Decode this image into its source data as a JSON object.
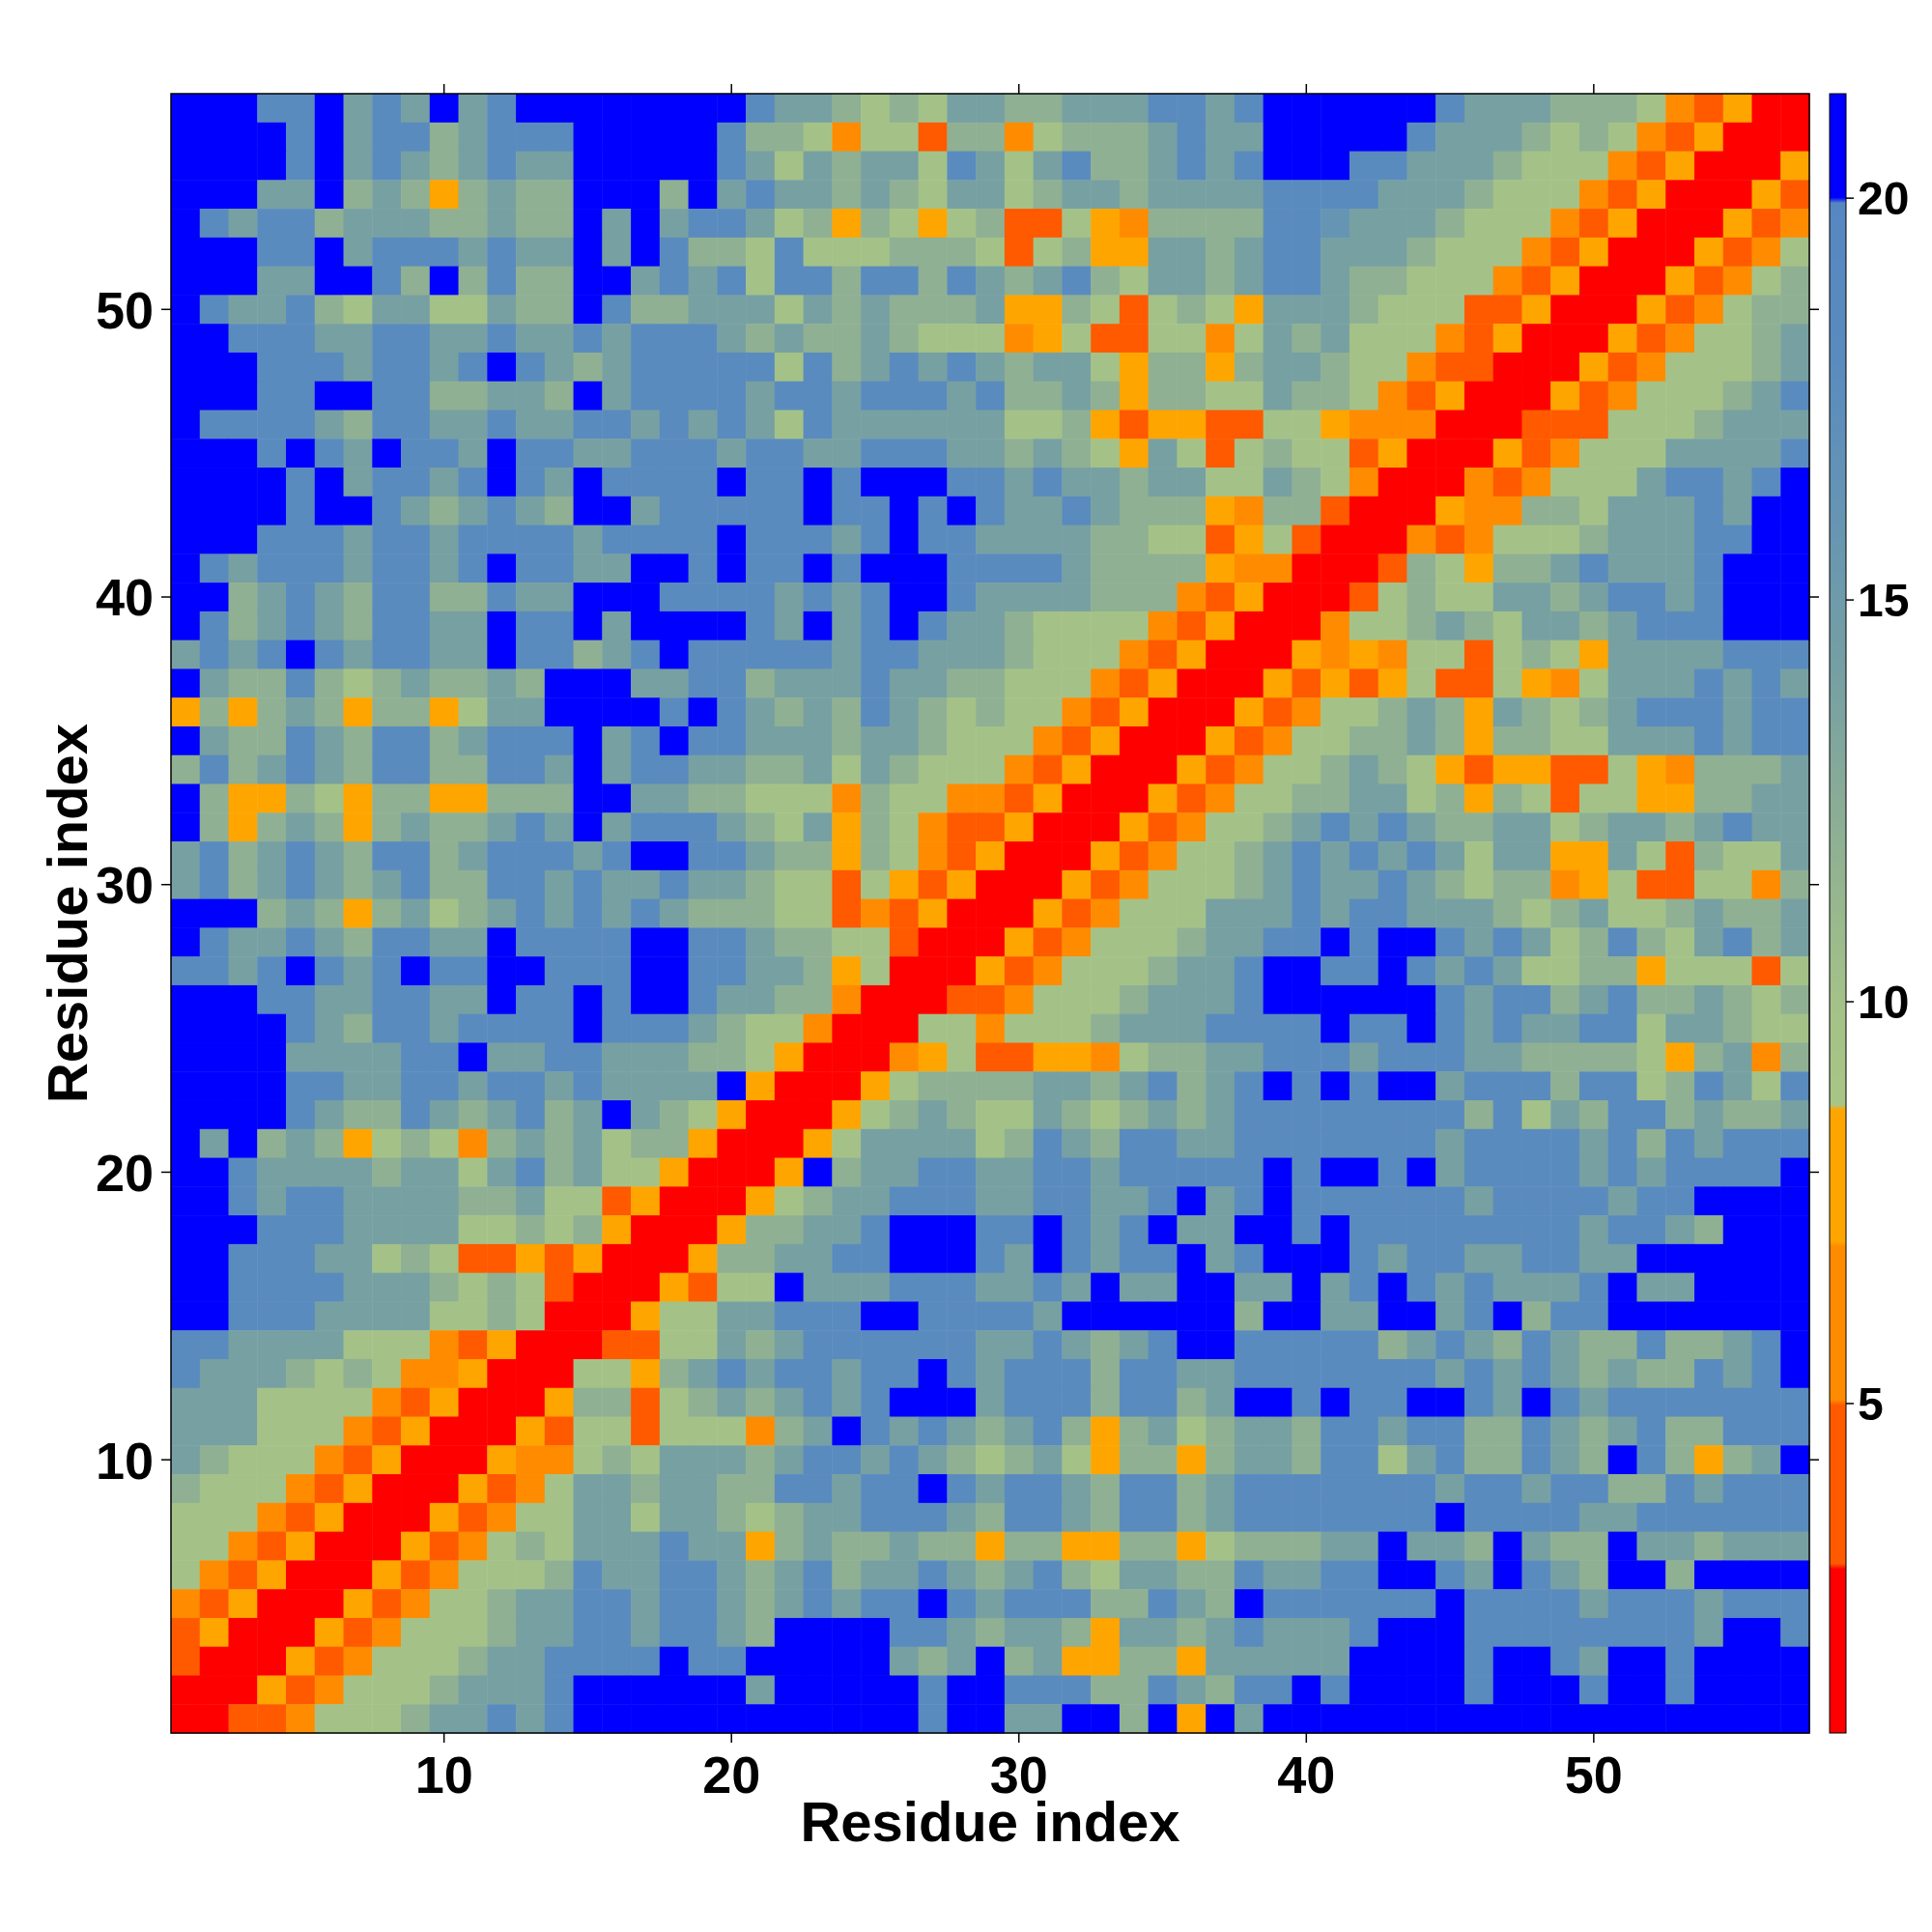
{
  "chart_data": {
    "type": "heatmap",
    "xlabel": "Residue index",
    "ylabel": "Residue index",
    "xlim": [
      0.5,
      57.5
    ],
    "ylim": [
      0.5,
      57.5
    ],
    "xticks": [
      10,
      20,
      30,
      40,
      50
    ],
    "yticks": [
      10,
      20,
      30,
      40,
      50
    ],
    "clim": [
      0.9,
      21.3
    ],
    "cticks": [
      5,
      10,
      15,
      20
    ],
    "cells": [
      [
        21,
        21,
        21,
        18,
        18,
        21,
        14,
        18,
        14,
        21,
        14,
        18,
        21,
        21,
        21,
        21,
        21,
        21,
        21,
        21,
        18,
        14,
        14,
        12,
        10,
        12,
        10,
        14,
        14,
        12,
        12,
        14,
        14,
        14,
        18,
        18,
        14,
        18,
        21,
        21,
        21,
        21,
        21,
        21,
        18,
        14,
        14,
        14,
        12,
        12,
        12,
        10,
        6,
        4,
        8,
        2,
        2
      ],
      [
        21,
        21,
        21,
        21,
        18,
        21,
        14,
        18,
        18,
        12,
        14,
        18,
        18,
        18,
        21,
        21,
        21,
        21,
        21,
        18,
        12,
        12,
        10,
        6,
        10,
        10,
        4,
        12,
        12,
        6,
        10,
        12,
        12,
        12,
        14,
        18,
        14,
        14,
        21,
        21,
        21,
        21,
        21,
        18,
        14,
        14,
        14,
        12,
        10,
        12,
        10,
        6,
        4,
        8,
        2,
        2,
        2
      ],
      [
        21,
        21,
        21,
        21,
        18,
        21,
        14,
        18,
        14,
        12,
        14,
        18,
        14,
        14,
        21,
        21,
        21,
        21,
        21,
        18,
        14,
        10,
        14,
        12,
        14,
        14,
        10,
        18,
        14,
        10,
        14,
        18,
        12,
        12,
        14,
        18,
        14,
        18,
        21,
        21,
        21,
        18,
        18,
        14,
        14,
        14,
        12,
        10,
        10,
        10,
        6,
        4,
        8,
        2,
        2,
        2,
        8
      ],
      [
        21,
        21,
        21,
        14,
        14,
        21,
        12,
        14,
        12,
        8,
        12,
        14,
        12,
        12,
        21,
        21,
        21,
        12,
        21,
        14,
        18,
        14,
        14,
        12,
        14,
        12,
        10,
        14,
        14,
        10,
        12,
        14,
        14,
        12,
        14,
        14,
        14,
        14,
        18,
        18,
        18,
        18,
        14,
        14,
        14,
        12,
        10,
        10,
        10,
        6,
        4,
        8,
        2,
        2,
        2,
        8,
        4
      ],
      [
        21,
        18,
        14,
        18,
        18,
        12,
        14,
        14,
        14,
        12,
        12,
        14,
        12,
        12,
        21,
        14,
        21,
        14,
        18,
        18,
        14,
        10,
        12,
        8,
        12,
        10,
        8,
        10,
        12,
        4,
        4,
        10,
        8,
        6,
        12,
        12,
        12,
        12,
        18,
        18,
        16,
        14,
        14,
        14,
        12,
        10,
        10,
        10,
        6,
        4,
        8,
        2,
        2,
        2,
        8,
        4,
        6
      ],
      [
        21,
        21,
        21,
        18,
        18,
        21,
        14,
        18,
        18,
        18,
        14,
        18,
        14,
        14,
        21,
        14,
        21,
        18,
        12,
        12,
        10,
        18,
        10,
        10,
        10,
        12,
        12,
        12,
        10,
        4,
        10,
        12,
        8,
        8,
        14,
        14,
        12,
        14,
        18,
        18,
        14,
        14,
        14,
        12,
        10,
        10,
        10,
        6,
        4,
        8,
        2,
        2,
        2,
        8,
        4,
        6,
        10
      ],
      [
        21,
        21,
        21,
        14,
        14,
        21,
        21,
        18,
        12,
        21,
        12,
        18,
        12,
        12,
        21,
        21,
        14,
        18,
        14,
        18,
        10,
        18,
        18,
        12,
        18,
        18,
        12,
        18,
        14,
        12,
        14,
        18,
        12,
        10,
        14,
        14,
        12,
        14,
        18,
        18,
        14,
        12,
        12,
        10,
        10,
        10,
        6,
        4,
        8,
        2,
        2,
        2,
        8,
        4,
        6,
        10,
        12
      ],
      [
        21,
        18,
        14,
        14,
        18,
        12,
        10,
        14,
        14,
        10,
        10,
        14,
        12,
        12,
        21,
        18,
        12,
        12,
        14,
        14,
        14,
        10,
        14,
        12,
        14,
        12,
        12,
        12,
        14,
        8,
        8,
        12,
        10,
        4,
        10,
        12,
        10,
        8,
        14,
        14,
        14,
        12,
        10,
        10,
        10,
        4,
        4,
        8,
        2,
        2,
        2,
        8,
        4,
        6,
        10,
        12,
        12
      ],
      [
        21,
        21,
        18,
        18,
        18,
        14,
        14,
        18,
        18,
        14,
        14,
        18,
        14,
        14,
        18,
        14,
        18,
        18,
        18,
        14,
        12,
        14,
        12,
        12,
        14,
        12,
        10,
        10,
        10,
        6,
        8,
        10,
        4,
        4,
        10,
        10,
        6,
        10,
        14,
        12,
        14,
        10,
        10,
        10,
        6,
        4,
        8,
        2,
        2,
        2,
        8,
        4,
        6,
        10,
        10,
        12,
        14
      ],
      [
        21,
        21,
        21,
        18,
        18,
        18,
        14,
        18,
        18,
        14,
        18,
        21,
        18,
        14,
        12,
        14,
        18,
        18,
        18,
        18,
        18,
        10,
        18,
        12,
        14,
        18,
        14,
        18,
        14,
        12,
        14,
        14,
        10,
        8,
        12,
        12,
        8,
        12,
        14,
        14,
        12,
        10,
        10,
        6,
        4,
        4,
        2,
        2,
        2,
        8,
        4,
        6,
        10,
        10,
        10,
        12,
        14
      ],
      [
        21,
        21,
        21,
        18,
        18,
        21,
        21,
        18,
        18,
        12,
        12,
        14,
        14,
        12,
        21,
        14,
        18,
        18,
        18,
        18,
        14,
        18,
        18,
        14,
        18,
        18,
        18,
        14,
        18,
        12,
        12,
        14,
        12,
        8,
        12,
        12,
        10,
        10,
        14,
        12,
        12,
        10,
        6,
        4,
        8,
        2,
        2,
        2,
        8,
        4,
        6,
        10,
        10,
        10,
        12,
        14,
        18
      ],
      [
        21,
        18,
        18,
        18,
        18,
        14,
        12,
        18,
        18,
        14,
        14,
        18,
        14,
        14,
        18,
        18,
        14,
        18,
        14,
        18,
        14,
        10,
        18,
        14,
        14,
        14,
        14,
        14,
        14,
        10,
        10,
        12,
        8,
        4,
        8,
        8,
        4,
        4,
        10,
        10,
        8,
        6,
        6,
        6,
        2,
        2,
        2,
        4,
        4,
        4,
        10,
        10,
        10,
        12,
        14,
        14,
        14
      ],
      [
        21,
        21,
        21,
        18,
        21,
        18,
        14,
        21,
        18,
        18,
        14,
        21,
        18,
        18,
        14,
        14,
        18,
        18,
        18,
        14,
        18,
        18,
        14,
        14,
        18,
        18,
        18,
        14,
        14,
        12,
        14,
        12,
        10,
        8,
        14,
        10,
        4,
        10,
        12,
        10,
        10,
        4,
        8,
        2,
        2,
        2,
        8,
        4,
        6,
        10,
        10,
        10,
        14,
        14,
        14,
        14,
        18
      ],
      [
        21,
        21,
        21,
        21,
        18,
        21,
        14,
        18,
        18,
        14,
        18,
        21,
        18,
        14,
        21,
        18,
        18,
        18,
        18,
        21,
        18,
        18,
        21,
        18,
        21,
        21,
        21,
        18,
        18,
        14,
        18,
        14,
        14,
        12,
        14,
        14,
        10,
        10,
        14,
        12,
        10,
        6,
        2,
        2,
        2,
        6,
        4,
        6,
        10,
        10,
        10,
        14,
        18,
        18,
        14,
        18,
        21
      ],
      [
        21,
        21,
        21,
        21,
        18,
        21,
        21,
        18,
        14,
        12,
        14,
        18,
        14,
        12,
        21,
        21,
        14,
        18,
        18,
        18,
        18,
        18,
        21,
        18,
        18,
        21,
        18,
        21,
        18,
        14,
        14,
        18,
        14,
        12,
        12,
        12,
        8,
        6,
        12,
        12,
        4,
        2,
        2,
        2,
        8,
        6,
        6,
        12,
        12,
        10,
        14,
        14,
        14,
        18,
        14,
        21,
        21
      ],
      [
        21,
        21,
        21,
        18,
        18,
        18,
        14,
        18,
        18,
        14,
        18,
        18,
        18,
        18,
        14,
        18,
        18,
        18,
        18,
        21,
        18,
        18,
        18,
        14,
        18,
        21,
        18,
        18,
        14,
        14,
        14,
        14,
        12,
        12,
        10,
        10,
        4,
        8,
        10,
        4,
        2,
        2,
        2,
        6,
        4,
        6,
        10,
        10,
        10,
        12,
        14,
        14,
        14,
        18,
        18,
        21,
        21
      ],
      [
        21,
        18,
        14,
        18,
        18,
        18,
        14,
        18,
        18,
        14,
        18,
        21,
        18,
        18,
        14,
        14,
        21,
        21,
        18,
        21,
        18,
        18,
        21,
        18,
        21,
        21,
        21,
        18,
        18,
        18,
        18,
        14,
        12,
        12,
        12,
        12,
        8,
        6,
        6,
        2,
        2,
        2,
        4,
        12,
        10,
        8,
        12,
        12,
        14,
        18,
        14,
        14,
        14,
        18,
        21,
        21,
        21
      ],
      [
        21,
        21,
        12,
        14,
        18,
        14,
        12,
        18,
        18,
        12,
        12,
        18,
        14,
        14,
        21,
        21,
        21,
        18,
        18,
        18,
        18,
        14,
        18,
        14,
        18,
        21,
        21,
        18,
        14,
        14,
        14,
        14,
        12,
        12,
        12,
        6,
        4,
        8,
        2,
        2,
        2,
        4,
        10,
        12,
        10,
        10,
        14,
        14,
        12,
        14,
        18,
        18,
        14,
        18,
        21,
        21,
        21
      ],
      [
        21,
        18,
        12,
        14,
        18,
        14,
        12,
        18,
        18,
        14,
        14,
        21,
        18,
        18,
        21,
        14,
        21,
        21,
        21,
        21,
        18,
        14,
        21,
        14,
        18,
        21,
        18,
        14,
        14,
        12,
        10,
        10,
        10,
        10,
        6,
        4,
        8,
        2,
        2,
        2,
        6,
        10,
        10,
        12,
        14,
        12,
        10,
        14,
        14,
        12,
        14,
        18,
        18,
        18,
        21,
        21,
        21
      ],
      [
        14,
        18,
        14,
        18,
        21,
        18,
        14,
        18,
        18,
        14,
        14,
        21,
        18,
        18,
        12,
        14,
        18,
        21,
        18,
        18,
        18,
        18,
        18,
        14,
        18,
        18,
        14,
        14,
        14,
        12,
        10,
        10,
        10,
        6,
        4,
        8,
        2,
        2,
        2,
        8,
        6,
        8,
        6,
        10,
        10,
        4,
        10,
        12,
        10,
        8,
        14,
        14,
        14,
        14,
        18,
        18,
        18
      ],
      [
        21,
        14,
        12,
        12,
        18,
        12,
        10,
        12,
        14,
        12,
        12,
        14,
        12,
        21,
        21,
        21,
        14,
        14,
        18,
        18,
        12,
        14,
        14,
        14,
        18,
        14,
        14,
        12,
        12,
        10,
        10,
        10,
        6,
        4,
        8,
        2,
        2,
        2,
        8,
        4,
        8,
        4,
        8,
        10,
        4,
        4,
        10,
        8,
        6,
        10,
        14,
        14,
        14,
        18,
        14,
        18,
        14
      ],
      [
        8,
        12,
        8,
        12,
        14,
        12,
        8,
        12,
        12,
        8,
        10,
        14,
        14,
        21,
        21,
        21,
        21,
        18,
        21,
        18,
        14,
        12,
        14,
        12,
        18,
        14,
        12,
        10,
        12,
        10,
        10,
        6,
        4,
        8,
        2,
        2,
        2,
        8,
        4,
        6,
        10,
        10,
        12,
        14,
        12,
        8,
        14,
        12,
        10,
        12,
        14,
        18,
        18,
        18,
        14,
        18,
        18
      ],
      [
        21,
        14,
        12,
        12,
        18,
        14,
        12,
        18,
        18,
        12,
        14,
        18,
        18,
        18,
        21,
        14,
        18,
        21,
        18,
        18,
        14,
        14,
        14,
        12,
        14,
        14,
        12,
        10,
        10,
        10,
        6,
        4,
        8,
        2,
        2,
        2,
        8,
        4,
        6,
        10,
        10,
        12,
        12,
        14,
        12,
        8,
        12,
        12,
        10,
        10,
        14,
        14,
        14,
        18,
        14,
        18,
        18
      ],
      [
        12,
        18,
        12,
        14,
        18,
        14,
        12,
        18,
        18,
        12,
        12,
        18,
        18,
        14,
        21,
        14,
        18,
        18,
        14,
        14,
        12,
        12,
        14,
        10,
        14,
        12,
        10,
        10,
        10,
        6,
        4,
        8,
        2,
        2,
        2,
        8,
        4,
        6,
        10,
        10,
        12,
        14,
        12,
        10,
        8,
        4,
        8,
        8,
        4,
        4,
        10,
        8,
        6,
        12,
        12,
        12,
        14
      ],
      [
        21,
        12,
        8,
        8,
        12,
        10,
        8,
        12,
        12,
        8,
        8,
        12,
        12,
        12,
        21,
        21,
        14,
        14,
        12,
        12,
        10,
        10,
        10,
        6,
        12,
        10,
        10,
        6,
        6,
        4,
        8,
        2,
        2,
        2,
        8,
        4,
        6,
        10,
        10,
        12,
        12,
        14,
        14,
        10,
        12,
        8,
        12,
        10,
        4,
        10,
        10,
        8,
        8,
        12,
        12,
        14,
        14
      ],
      [
        21,
        12,
        8,
        12,
        14,
        12,
        8,
        12,
        14,
        12,
        12,
        14,
        18,
        14,
        21,
        14,
        18,
        18,
        18,
        14,
        12,
        10,
        14,
        8,
        12,
        10,
        6,
        4,
        4,
        8,
        2,
        2,
        2,
        8,
        4,
        6,
        10,
        10,
        12,
        14,
        18,
        14,
        18,
        14,
        12,
        12,
        14,
        14,
        10,
        12,
        14,
        14,
        12,
        14,
        18,
        14,
        14
      ],
      [
        14,
        18,
        12,
        14,
        18,
        14,
        12,
        18,
        18,
        12,
        14,
        18,
        18,
        18,
        14,
        18,
        21,
        21,
        18,
        18,
        14,
        12,
        12,
        8,
        12,
        10,
        6,
        4,
        8,
        2,
        2,
        2,
        8,
        4,
        6,
        10,
        10,
        12,
        14,
        18,
        14,
        18,
        14,
        18,
        14,
        10,
        14,
        14,
        8,
        8,
        14,
        10,
        4,
        12,
        10,
        10,
        14
      ],
      [
        14,
        18,
        12,
        14,
        18,
        14,
        12,
        14,
        18,
        12,
        12,
        18,
        18,
        14,
        18,
        14,
        14,
        18,
        14,
        14,
        12,
        10,
        10,
        4,
        10,
        8,
        4,
        8,
        2,
        2,
        2,
        8,
        4,
        6,
        10,
        10,
        10,
        12,
        14,
        18,
        14,
        14,
        18,
        14,
        12,
        10,
        12,
        12,
        6,
        8,
        10,
        4,
        4,
        10,
        10,
        6,
        12
      ],
      [
        21,
        21,
        21,
        12,
        14,
        12,
        8,
        12,
        14,
        10,
        12,
        14,
        18,
        14,
        18,
        14,
        18,
        14,
        12,
        12,
        12,
        10,
        10,
        4,
        6,
        4,
        8,
        2,
        2,
        2,
        8,
        4,
        6,
        10,
        10,
        10,
        14,
        14,
        14,
        18,
        14,
        18,
        18,
        14,
        14,
        14,
        12,
        10,
        12,
        14,
        10,
        10,
        12,
        14,
        12,
        12,
        14
      ],
      [
        21,
        18,
        14,
        14,
        18,
        14,
        12,
        18,
        18,
        14,
        14,
        21,
        18,
        18,
        18,
        18,
        21,
        21,
        18,
        18,
        14,
        12,
        12,
        10,
        10,
        4,
        2,
        2,
        2,
        8,
        4,
        6,
        10,
        10,
        10,
        12,
        14,
        14,
        18,
        18,
        21,
        18,
        21,
        21,
        18,
        14,
        18,
        14,
        10,
        12,
        18,
        12,
        10,
        14,
        18,
        12,
        14
      ],
      [
        18,
        18,
        14,
        18,
        21,
        18,
        14,
        18,
        21,
        18,
        18,
        21,
        21,
        18,
        18,
        18,
        21,
        21,
        18,
        18,
        14,
        14,
        12,
        8,
        10,
        2,
        2,
        2,
        8,
        4,
        6,
        10,
        10,
        10,
        12,
        14,
        14,
        18,
        21,
        21,
        18,
        18,
        21,
        18,
        14,
        18,
        14,
        10,
        10,
        12,
        12,
        8,
        10,
        10,
        10,
        4,
        10
      ],
      [
        21,
        21,
        21,
        18,
        18,
        14,
        14,
        18,
        18,
        14,
        14,
        21,
        18,
        18,
        21,
        18,
        21,
        21,
        18,
        14,
        14,
        12,
        12,
        6,
        2,
        2,
        2,
        4,
        4,
        6,
        10,
        10,
        10,
        12,
        14,
        14,
        14,
        18,
        21,
        21,
        21,
        21,
        21,
        21,
        18,
        14,
        18,
        18,
        12,
        14,
        18,
        12,
        12,
        14,
        12,
        10,
        12
      ],
      [
        21,
        21,
        21,
        21,
        18,
        14,
        12,
        18,
        18,
        14,
        18,
        18,
        18,
        18,
        21,
        18,
        18,
        18,
        14,
        12,
        10,
        10,
        6,
        2,
        2,
        2,
        10,
        10,
        6,
        10,
        10,
        10,
        12,
        14,
        14,
        14,
        18,
        18,
        18,
        18,
        21,
        18,
        18,
        21,
        18,
        14,
        18,
        14,
        14,
        18,
        18,
        10,
        14,
        14,
        12,
        10,
        10
      ],
      [
        21,
        21,
        21,
        21,
        14,
        14,
        14,
        14,
        18,
        18,
        21,
        14,
        14,
        18,
        18,
        14,
        14,
        14,
        12,
        12,
        10,
        8,
        2,
        2,
        2,
        6,
        8,
        10,
        4,
        4,
        8,
        8,
        6,
        10,
        12,
        12,
        14,
        14,
        18,
        18,
        18,
        14,
        18,
        18,
        18,
        14,
        14,
        12,
        12,
        12,
        12,
        10,
        8,
        12,
        14,
        6,
        12
      ],
      [
        21,
        21,
        21,
        21,
        18,
        18,
        14,
        14,
        18,
        18,
        14,
        18,
        18,
        14,
        18,
        14,
        14,
        14,
        14,
        21,
        8,
        2,
        2,
        2,
        8,
        10,
        12,
        12,
        12,
        12,
        14,
        14,
        12,
        14,
        18,
        12,
        14,
        18,
        21,
        18,
        21,
        18,
        21,
        21,
        14,
        18,
        18,
        18,
        12,
        18,
        18,
        10,
        12,
        18,
        14,
        10,
        18
      ],
      [
        21,
        21,
        21,
        21,
        18,
        14,
        12,
        12,
        18,
        14,
        12,
        14,
        18,
        12,
        14,
        21,
        14,
        12,
        10,
        8,
        2,
        2,
        2,
        8,
        10,
        12,
        14,
        12,
        10,
        10,
        14,
        12,
        10,
        12,
        14,
        12,
        14,
        18,
        18,
        18,
        18,
        18,
        18,
        18,
        18,
        12,
        18,
        10,
        14,
        12,
        18,
        18,
        12,
        14,
        12,
        12,
        14
      ],
      [
        21,
        14,
        21,
        12,
        14,
        12,
        8,
        10,
        12,
        10,
        6,
        12,
        14,
        12,
        14,
        10,
        12,
        12,
        8,
        2,
        2,
        2,
        8,
        10,
        14,
        14,
        14,
        14,
        10,
        12,
        18,
        14,
        12,
        18,
        18,
        14,
        14,
        18,
        18,
        18,
        18,
        18,
        18,
        18,
        14,
        18,
        18,
        18,
        18,
        14,
        18,
        12,
        18,
        14,
        18,
        18,
        18
      ],
      [
        21,
        21,
        18,
        14,
        14,
        14,
        14,
        12,
        14,
        14,
        10,
        14,
        18,
        12,
        14,
        10,
        10,
        8,
        2,
        2,
        2,
        8,
        21,
        12,
        14,
        14,
        18,
        18,
        14,
        14,
        18,
        18,
        14,
        18,
        18,
        18,
        18,
        18,
        21,
        18,
        21,
        21,
        18,
        21,
        14,
        18,
        18,
        18,
        18,
        14,
        18,
        14,
        18,
        18,
        18,
        18,
        21
      ],
      [
        21,
        21,
        18,
        14,
        18,
        18,
        14,
        14,
        14,
        14,
        12,
        12,
        14,
        10,
        10,
        4,
        8,
        2,
        2,
        2,
        8,
        10,
        12,
        14,
        14,
        18,
        18,
        18,
        14,
        14,
        18,
        18,
        14,
        14,
        18,
        21,
        14,
        18,
        21,
        18,
        18,
        18,
        18,
        18,
        18,
        14,
        18,
        18,
        18,
        18,
        14,
        18,
        18,
        21,
        21,
        21,
        21
      ],
      [
        21,
        21,
        21,
        18,
        18,
        18,
        14,
        14,
        14,
        14,
        10,
        10,
        12,
        10,
        12,
        8,
        2,
        2,
        2,
        8,
        12,
        12,
        14,
        14,
        18,
        21,
        21,
        21,
        18,
        18,
        21,
        18,
        14,
        18,
        21,
        14,
        14,
        21,
        21,
        18,
        21,
        18,
        18,
        18,
        18,
        18,
        18,
        18,
        18,
        14,
        18,
        18,
        14,
        12,
        21,
        21,
        21
      ],
      [
        21,
        21,
        18,
        18,
        18,
        14,
        14,
        10,
        12,
        10,
        4,
        4,
        8,
        4,
        8,
        2,
        2,
        2,
        8,
        12,
        12,
        14,
        14,
        18,
        18,
        21,
        21,
        21,
        18,
        14,
        21,
        18,
        14,
        18,
        18,
        21,
        14,
        18,
        21,
        21,
        21,
        18,
        14,
        18,
        18,
        14,
        14,
        18,
        18,
        14,
        14,
        21,
        21,
        21,
        21,
        21,
        21
      ],
      [
        21,
        21,
        18,
        18,
        18,
        18,
        14,
        14,
        14,
        12,
        10,
        12,
        10,
        4,
        2,
        2,
        2,
        8,
        4,
        10,
        10,
        21,
        14,
        14,
        14,
        18,
        18,
        18,
        14,
        14,
        18,
        14,
        21,
        14,
        14,
        21,
        21,
        14,
        14,
        21,
        14,
        18,
        21,
        18,
        14,
        18,
        14,
        14,
        14,
        18,
        21,
        14,
        14,
        21,
        21,
        21,
        21
      ],
      [
        21,
        21,
        18,
        18,
        18,
        14,
        14,
        14,
        14,
        10,
        10,
        12,
        10,
        2,
        2,
        2,
        8,
        10,
        10,
        14,
        14,
        18,
        18,
        18,
        21,
        21,
        18,
        18,
        18,
        18,
        14,
        21,
        21,
        21,
        21,
        21,
        21,
        12,
        21,
        21,
        14,
        14,
        21,
        21,
        14,
        18,
        21,
        12,
        18,
        18,
        21,
        21,
        21,
        21,
        21,
        21,
        21
      ],
      [
        18,
        18,
        14,
        14,
        14,
        14,
        10,
        10,
        10,
        6,
        4,
        8,
        2,
        2,
        2,
        4,
        4,
        10,
        10,
        14,
        12,
        14,
        18,
        18,
        18,
        18,
        18,
        18,
        14,
        14,
        18,
        14,
        12,
        14,
        18,
        21,
        21,
        18,
        18,
        18,
        18,
        18,
        12,
        14,
        18,
        14,
        12,
        18,
        14,
        12,
        12,
        18,
        12,
        12,
        14,
        18,
        21
      ],
      [
        18,
        14,
        14,
        14,
        12,
        10,
        12,
        10,
        6,
        6,
        8,
        2,
        2,
        2,
        10,
        10,
        8,
        12,
        14,
        18,
        14,
        18,
        18,
        14,
        18,
        18,
        21,
        18,
        14,
        18,
        18,
        18,
        12,
        18,
        18,
        14,
        14,
        18,
        18,
        18,
        18,
        18,
        18,
        18,
        14,
        18,
        14,
        18,
        14,
        12,
        14,
        12,
        12,
        18,
        14,
        18,
        21
      ],
      [
        14,
        14,
        14,
        10,
        10,
        10,
        10,
        6,
        4,
        8,
        2,
        2,
        2,
        8,
        12,
        12,
        4,
        10,
        12,
        14,
        12,
        14,
        18,
        14,
        18,
        21,
        21,
        21,
        14,
        18,
        18,
        18,
        12,
        18,
        18,
        12,
        14,
        21,
        21,
        18,
        21,
        18,
        18,
        21,
        21,
        18,
        14,
        21,
        18,
        14,
        18,
        18,
        18,
        18,
        18,
        18,
        18
      ],
      [
        14,
        14,
        14,
        10,
        10,
        10,
        6,
        4,
        8,
        2,
        2,
        2,
        8,
        4,
        10,
        10,
        4,
        10,
        10,
        10,
        6,
        12,
        14,
        21,
        18,
        14,
        18,
        14,
        12,
        14,
        18,
        12,
        8,
        12,
        14,
        10,
        12,
        14,
        14,
        12,
        18,
        18,
        14,
        18,
        18,
        12,
        12,
        18,
        14,
        12,
        14,
        18,
        12,
        12,
        18,
        18,
        18
      ],
      [
        14,
        12,
        10,
        10,
        10,
        6,
        4,
        8,
        2,
        2,
        2,
        8,
        6,
        6,
        10,
        12,
        10,
        14,
        14,
        14,
        12,
        14,
        18,
        18,
        14,
        18,
        14,
        12,
        10,
        12,
        14,
        10,
        8,
        12,
        12,
        8,
        12,
        14,
        14,
        12,
        18,
        18,
        10,
        14,
        18,
        12,
        12,
        18,
        14,
        12,
        21,
        18,
        12,
        8,
        12,
        14,
        21
      ],
      [
        12,
        10,
        10,
        10,
        6,
        4,
        8,
        2,
        2,
        2,
        8,
        4,
        6,
        10,
        14,
        14,
        12,
        14,
        14,
        12,
        12,
        18,
        18,
        14,
        18,
        18,
        21,
        18,
        14,
        18,
        18,
        14,
        12,
        18,
        18,
        12,
        14,
        18,
        18,
        18,
        18,
        18,
        18,
        18,
        14,
        18,
        18,
        14,
        18,
        18,
        12,
        12,
        18,
        14,
        18,
        18,
        18
      ],
      [
        10,
        10,
        10,
        6,
        4,
        8,
        2,
        2,
        2,
        8,
        4,
        6,
        10,
        10,
        14,
        14,
        10,
        14,
        14,
        12,
        10,
        12,
        14,
        14,
        18,
        18,
        18,
        14,
        12,
        18,
        18,
        14,
        12,
        18,
        18,
        12,
        14,
        18,
        18,
        18,
        18,
        18,
        18,
        18,
        21,
        18,
        18,
        18,
        18,
        14,
        14,
        18,
        18,
        18,
        18,
        18,
        18
      ],
      [
        10,
        10,
        6,
        4,
        8,
        2,
        2,
        2,
        8,
        4,
        6,
        10,
        12,
        10,
        14,
        14,
        14,
        18,
        14,
        14,
        8,
        12,
        14,
        12,
        12,
        14,
        12,
        12,
        8,
        12,
        12,
        8,
        8,
        12,
        12,
        8,
        10,
        12,
        12,
        12,
        14,
        14,
        21,
        14,
        14,
        12,
        21,
        14,
        12,
        12,
        21,
        14,
        14,
        12,
        14,
        14,
        14
      ],
      [
        10,
        6,
        4,
        8,
        2,
        2,
        2,
        8,
        4,
        6,
        10,
        10,
        10,
        12,
        18,
        14,
        14,
        18,
        18,
        14,
        12,
        14,
        18,
        12,
        14,
        14,
        18,
        14,
        12,
        14,
        18,
        12,
        10,
        14,
        14,
        12,
        12,
        18,
        14,
        14,
        18,
        18,
        21,
        21,
        18,
        14,
        21,
        18,
        14,
        12,
        21,
        21,
        12,
        21,
        21,
        21,
        21
      ],
      [
        6,
        4,
        8,
        2,
        2,
        2,
        8,
        4,
        6,
        10,
        10,
        12,
        14,
        14,
        18,
        18,
        14,
        18,
        18,
        14,
        12,
        14,
        18,
        14,
        18,
        18,
        21,
        18,
        14,
        18,
        18,
        18,
        12,
        12,
        18,
        14,
        12,
        21,
        18,
        18,
        18,
        18,
        18,
        18,
        21,
        18,
        18,
        18,
        18,
        14,
        18,
        18,
        18,
        14,
        18,
        18,
        18
      ],
      [
        4,
        8,
        2,
        2,
        2,
        8,
        4,
        6,
        10,
        10,
        10,
        12,
        14,
        14,
        18,
        18,
        14,
        18,
        18,
        14,
        12,
        21,
        21,
        21,
        21,
        18,
        18,
        14,
        12,
        14,
        14,
        12,
        8,
        14,
        14,
        12,
        14,
        18,
        14,
        14,
        14,
        18,
        21,
        21,
        21,
        18,
        18,
        18,
        18,
        18,
        18,
        18,
        18,
        14,
        21,
        21,
        18
      ],
      [
        4,
        2,
        2,
        2,
        8,
        4,
        6,
        10,
        10,
        10,
        12,
        14,
        14,
        18,
        18,
        18,
        18,
        21,
        18,
        18,
        21,
        21,
        21,
        21,
        21,
        14,
        12,
        14,
        21,
        12,
        14,
        8,
        8,
        12,
        12,
        8,
        14,
        14,
        14,
        14,
        14,
        21,
        21,
        21,
        21,
        18,
        21,
        21,
        18,
        14,
        21,
        21,
        18,
        21,
        21,
        21,
        21
      ],
      [
        2,
        2,
        2,
        8,
        4,
        6,
        10,
        10,
        10,
        12,
        14,
        14,
        14,
        18,
        21,
        21,
        21,
        21,
        21,
        21,
        14,
        21,
        21,
        21,
        21,
        21,
        18,
        21,
        21,
        18,
        18,
        18,
        12,
        12,
        18,
        14,
        12,
        18,
        18,
        21,
        18,
        21,
        21,
        21,
        21,
        18,
        21,
        21,
        21,
        18,
        21,
        21,
        18,
        21,
        21,
        21,
        21
      ],
      [
        2,
        2,
        4,
        4,
        6,
        10,
        10,
        10,
        12,
        14,
        14,
        18,
        14,
        18,
        21,
        21,
        21,
        21,
        21,
        21,
        21,
        21,
        21,
        21,
        21,
        21,
        18,
        21,
        21,
        14,
        14,
        21,
        21,
        12,
        21,
        8,
        21,
        14,
        21,
        21,
        21,
        21,
        21,
        21,
        21,
        21,
        21,
        21,
        21,
        21,
        21,
        21,
        21,
        21,
        21,
        21,
        21
      ]
    ]
  }
}
